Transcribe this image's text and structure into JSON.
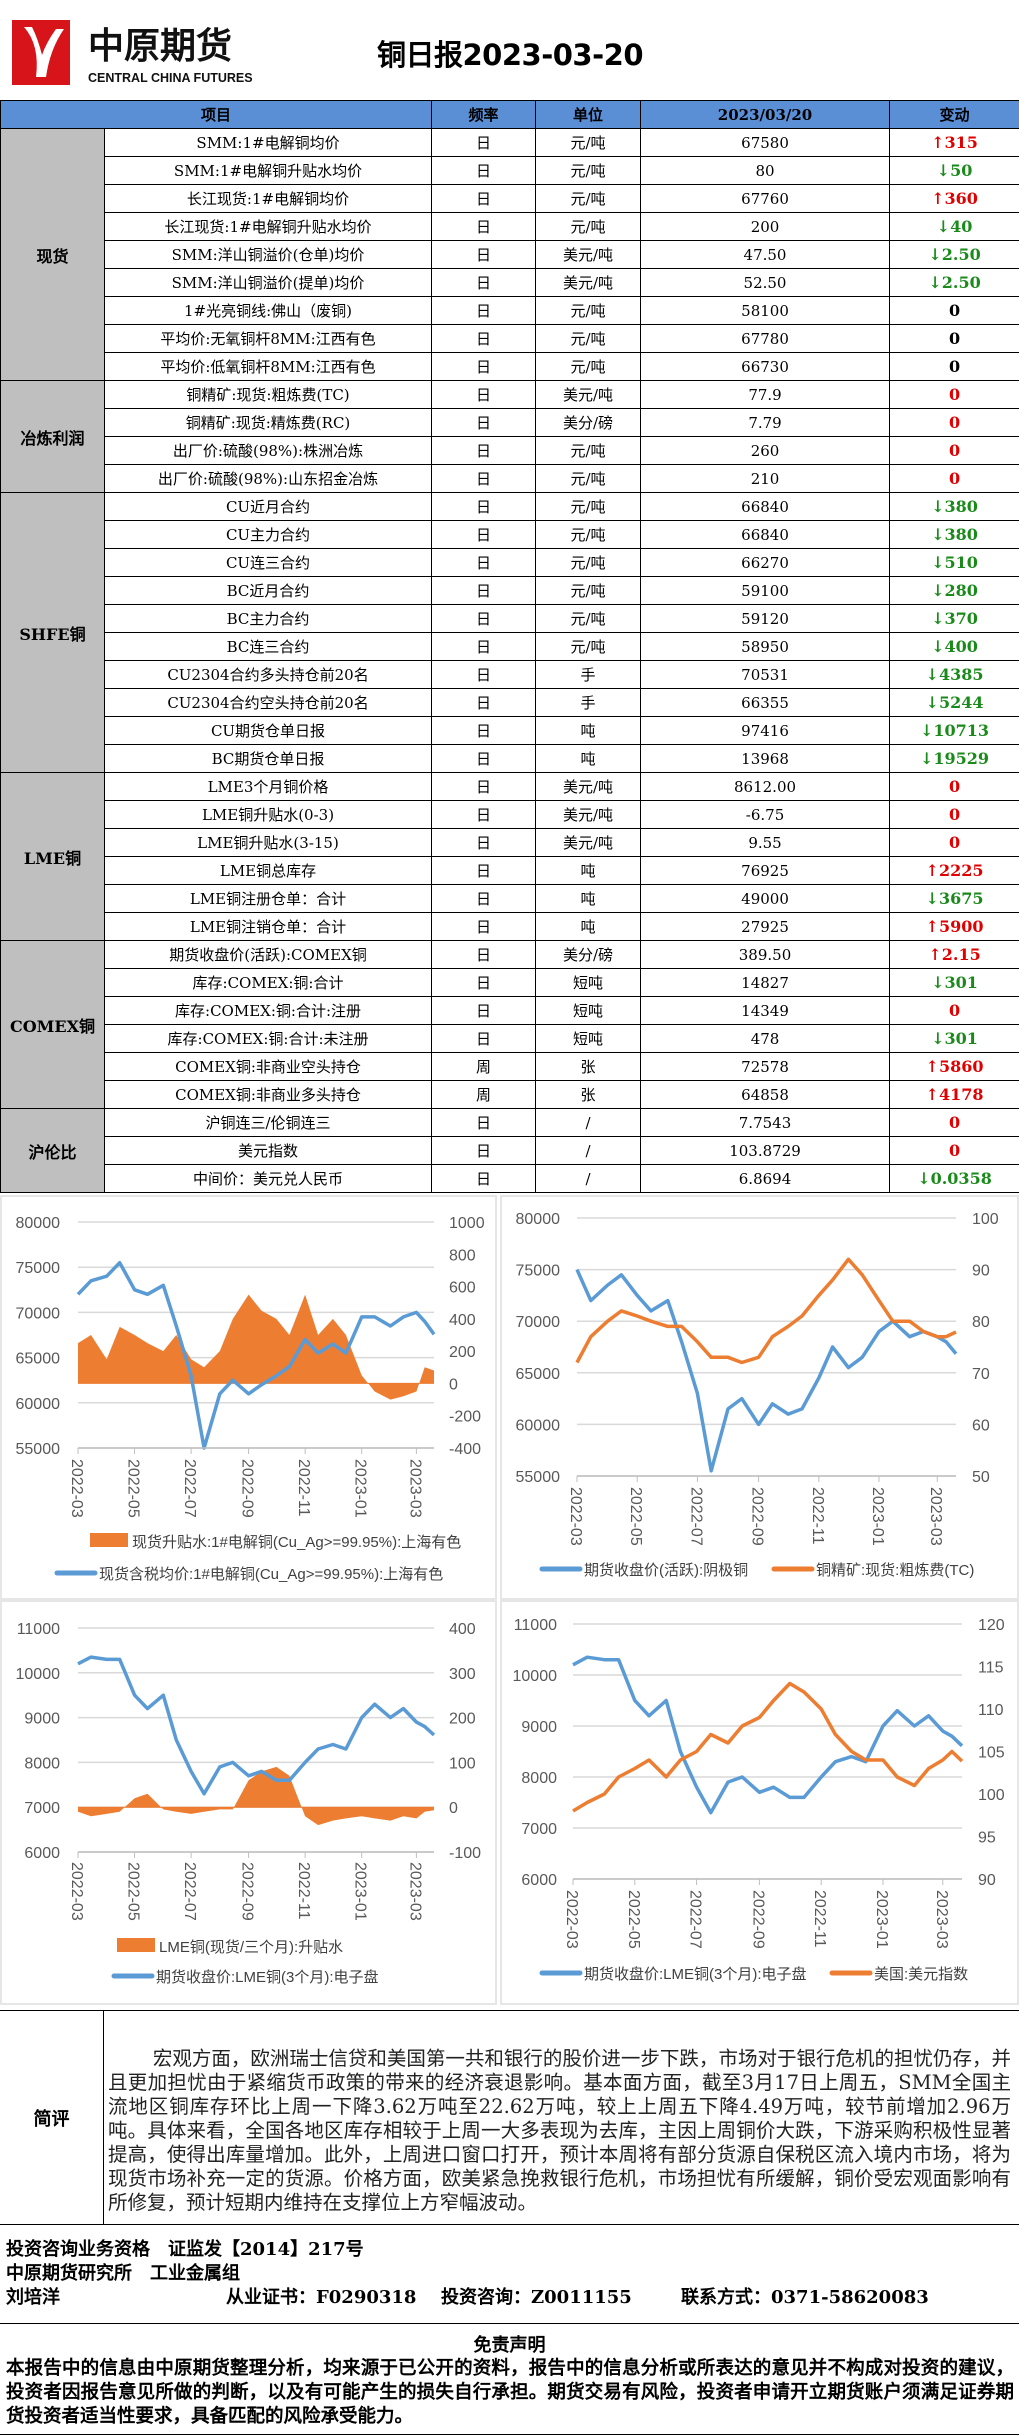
{
  "logo": {
    "cn": "中原期货",
    "en": "CENTRAL CHINA FUTURES",
    "brand_color": "#d7141a"
  },
  "title": "铜日报2023-03-20",
  "table": {
    "headers": [
      "项目",
      "频率",
      "单位",
      "2023/03/20",
      "变动"
    ],
    "header_bg": "#5a8fd6",
    "up_color": "#e00000",
    "down_color": "#1a8a1a",
    "sections": [
      {
        "name": "现货",
        "rows": [
          {
            "item": "SMM:1#电解铜均价",
            "freq": "日",
            "unit": "元/吨",
            "value": "67580",
            "change": "↑315",
            "dir": "up"
          },
          {
            "item": "SMM:1#电解铜升贴水均价",
            "freq": "日",
            "unit": "元/吨",
            "value": "80",
            "change": "↓50",
            "dir": "down"
          },
          {
            "item": "长江现货:1#电解铜均价",
            "freq": "日",
            "unit": "元/吨",
            "value": "67760",
            "change": "↑360",
            "dir": "up"
          },
          {
            "item": "长江现货:1#电解铜升贴水均价",
            "freq": "日",
            "unit": "元/吨",
            "value": "200",
            "change": "↓40",
            "dir": "down"
          },
          {
            "item": "SMM:洋山铜溢价(仓单)均价",
            "freq": "日",
            "unit": "美元/吨",
            "value": "47.50",
            "change": "↓2.50",
            "dir": "down"
          },
          {
            "item": "SMM:洋山铜溢价(提单)均价",
            "freq": "日",
            "unit": "美元/吨",
            "value": "52.50",
            "change": "↓2.50",
            "dir": "down"
          },
          {
            "item": "1#光亮铜线:佛山（废铜)",
            "freq": "日",
            "unit": "元/吨",
            "value": "58100",
            "change": "0",
            "dir": "flat-black"
          },
          {
            "item": "平均价:无氧铜杆8MM:江西有色",
            "freq": "日",
            "unit": "元/吨",
            "value": "67780",
            "change": "0",
            "dir": "flat-black"
          },
          {
            "item": "平均价:低氧铜杆8MM:江西有色",
            "freq": "日",
            "unit": "元/吨",
            "value": "66730",
            "change": "0",
            "dir": "flat-black"
          }
        ]
      },
      {
        "name": "冶炼利润",
        "rows": [
          {
            "item": "铜精矿:现货:粗炼费(TC)",
            "freq": "日",
            "unit": "美元/吨",
            "value": "77.9",
            "change": "0",
            "dir": "flat"
          },
          {
            "item": "铜精矿:现货:精炼费(RC)",
            "freq": "日",
            "unit": "美分/磅",
            "value": "7.79",
            "change": "0",
            "dir": "flat"
          },
          {
            "item": "出厂价:硫酸(98%):株洲冶炼",
            "freq": "日",
            "unit": "元/吨",
            "value": "260",
            "change": "0",
            "dir": "flat"
          },
          {
            "item": "出厂价:硫酸(98%):山东招金冶炼",
            "freq": "日",
            "unit": "元/吨",
            "value": "210",
            "change": "0",
            "dir": "flat"
          }
        ]
      },
      {
        "name": "SHFE铜",
        "rows": [
          {
            "item": "CU近月合约",
            "freq": "日",
            "unit": "元/吨",
            "value": "66840",
            "change": "↓380",
            "dir": "down"
          },
          {
            "item": "CU主力合约",
            "freq": "日",
            "unit": "元/吨",
            "value": "66840",
            "change": "↓380",
            "dir": "down"
          },
          {
            "item": "CU连三合约",
            "freq": "日",
            "unit": "元/吨",
            "value": "66270",
            "change": "↓510",
            "dir": "down"
          },
          {
            "item": "BC近月合约",
            "freq": "日",
            "unit": "元/吨",
            "value": "59100",
            "change": "↓280",
            "dir": "down"
          },
          {
            "item": "BC主力合约",
            "freq": "日",
            "unit": "元/吨",
            "value": "59120",
            "change": "↓370",
            "dir": "down"
          },
          {
            "item": "BC连三合约",
            "freq": "日",
            "unit": "元/吨",
            "value": "58950",
            "change": "↓400",
            "dir": "down"
          },
          {
            "item": "CU2304合约多头持仓前20名",
            "freq": "日",
            "unit": "手",
            "value": "70531",
            "change": "↓4385",
            "dir": "down"
          },
          {
            "item": "CU2304合约空头持仓前20名",
            "freq": "日",
            "unit": "手",
            "value": "66355",
            "change": "↓5244",
            "dir": "down"
          },
          {
            "item": "CU期货仓单日报",
            "freq": "日",
            "unit": "吨",
            "value": "97416",
            "change": "↓10713",
            "dir": "down"
          },
          {
            "item": "BC期货仓单日报",
            "freq": "日",
            "unit": "吨",
            "value": "13968",
            "change": "↓19529",
            "dir": "down"
          }
        ]
      },
      {
        "name": "LME铜",
        "rows": [
          {
            "item": "LME3个月铜价格",
            "freq": "日",
            "unit": "美元/吨",
            "value": "8612.00",
            "change": "0",
            "dir": "flat"
          },
          {
            "item": "LME铜升贴水(0-3)",
            "freq": "日",
            "unit": "美元/吨",
            "value": "-6.75",
            "change": "0",
            "dir": "flat"
          },
          {
            "item": "LME铜升贴水(3-15)",
            "freq": "日",
            "unit": "美元/吨",
            "value": "9.55",
            "change": "0",
            "dir": "flat"
          },
          {
            "item": "LME铜总库存",
            "freq": "日",
            "unit": "吨",
            "value": "76925",
            "change": "↑2225",
            "dir": "up"
          },
          {
            "item": "LME铜注册仓单：合计",
            "freq": "日",
            "unit": "吨",
            "value": "49000",
            "change": "↓3675",
            "dir": "down"
          },
          {
            "item": "LME铜注销仓单：合计",
            "freq": "日",
            "unit": "吨",
            "value": "27925",
            "change": "↑5900",
            "dir": "up"
          }
        ]
      },
      {
        "name": "COMEX铜",
        "rows": [
          {
            "item": "期货收盘价(活跃):COMEX铜",
            "freq": "日",
            "unit": "美分/磅",
            "value": "389.50",
            "change": "↑2.15",
            "dir": "up"
          },
          {
            "item": "库存:COMEX:铜:合计",
            "freq": "日",
            "unit": "短吨",
            "value": "14827",
            "change": "↓301",
            "dir": "down"
          },
          {
            "item": "库存:COMEX:铜:合计:注册",
            "freq": "日",
            "unit": "短吨",
            "value": "14349",
            "change": "0",
            "dir": "flat"
          },
          {
            "item": "库存:COMEX:铜:合计:未注册",
            "freq": "日",
            "unit": "短吨",
            "value": "478",
            "change": "↓301",
            "dir": "down"
          },
          {
            "item": "COMEX铜:非商业空头持仓",
            "freq": "周",
            "unit": "张",
            "value": "72578",
            "change": "↑5860",
            "dir": "up"
          },
          {
            "item": "COMEX铜:非商业多头持仓",
            "freq": "周",
            "unit": "张",
            "value": "64858",
            "change": "↑4178",
            "dir": "up"
          }
        ]
      },
      {
        "name": "沪伦比",
        "rows": [
          {
            "item": "沪铜连三/伦铜连三",
            "freq": "日",
            "unit": "/",
            "value": "7.7543",
            "change": "0",
            "dir": "flat"
          },
          {
            "item": "美元指数",
            "freq": "日",
            "unit": "/",
            "value": "103.8729",
            "change": "0",
            "dir": "flat"
          },
          {
            "item": "中间价：美元兑人民币",
            "freq": "日",
            "unit": "/",
            "value": "6.8694",
            "change": "↓0.0358",
            "dir": "down"
          }
        ]
      }
    ]
  },
  "chart_data": [
    {
      "type": "line+area",
      "x_ticks": [
        "2022-03",
        "2022-05",
        "2022-07",
        "2022-09",
        "2022-11",
        "2023-01",
        "2023-03"
      ],
      "y_left": {
        "range": [
          55000,
          80000
        ],
        "ticks": [
          "55000",
          "60000",
          "65000",
          "70000",
          "75000",
          "80000"
        ]
      },
      "y_right": {
        "range": [
          -400,
          1000
        ],
        "ticks": [
          "-400",
          "-200",
          "0",
          "200",
          "400",
          "600",
          "800",
          "1000"
        ]
      },
      "grid": true,
      "legend": "bottom",
      "x": [
        "2022-03-01",
        "2022-03-15",
        "2022-04-01",
        "2022-04-15",
        "2022-05-01",
        "2022-05-15",
        "2022-06-01",
        "2022-06-15",
        "2022-07-01",
        "2022-07-15",
        "2022-08-01",
        "2022-08-15",
        "2022-09-01",
        "2022-09-15",
        "2022-10-01",
        "2022-10-15",
        "2022-11-01",
        "2022-11-15",
        "2022-12-01",
        "2022-12-15",
        "2023-01-01",
        "2023-01-15",
        "2023-02-01",
        "2023-02-15",
        "2023-03-01",
        "2023-03-10",
        "2023-03-20"
      ],
      "series": [
        {
          "name": "现货升贴水:1#电解铜(Cu_Ag>=99.95%):上海有色",
          "axis": "right",
          "kind": "area",
          "color": "#ed7d31",
          "values": [
            250,
            300,
            150,
            350,
            300,
            250,
            200,
            300,
            150,
            100,
            200,
            400,
            550,
            450,
            400,
            300,
            550,
            300,
            400,
            300,
            50,
            -50,
            -100,
            -80,
            -50,
            100,
            80
          ]
        },
        {
          "name": "现货含税均价:1#电解铜(Cu_Ag>=99.95%):上海有色",
          "axis": "left",
          "kind": "line",
          "color": "#5b9bd5",
          "values": [
            72000,
            73500,
            74000,
            75500,
            72500,
            72000,
            73000,
            68500,
            63000,
            55000,
            61000,
            62500,
            61000,
            62000,
            63000,
            64000,
            67000,
            65500,
            66500,
            65500,
            69500,
            69500,
            68500,
            69500,
            70000,
            69000,
            67580
          ]
        }
      ]
    },
    {
      "type": "line",
      "x_ticks": [
        "2022-03",
        "2022-05",
        "2022-07",
        "2022-09",
        "2022-11",
        "2023-01",
        "2023-03"
      ],
      "y_left": {
        "range": [
          55000,
          80000
        ],
        "ticks": [
          "55000",
          "60000",
          "65000",
          "70000",
          "75000",
          "80000"
        ]
      },
      "y_right": {
        "range": [
          50,
          100
        ],
        "ticks": [
          "50",
          "60",
          "70",
          "80",
          "90",
          "100"
        ]
      },
      "grid": true,
      "legend": "bottom",
      "x": [
        "2022-03-01",
        "2022-03-15",
        "2022-04-01",
        "2022-04-15",
        "2022-05-01",
        "2022-05-15",
        "2022-06-01",
        "2022-06-15",
        "2022-07-01",
        "2022-07-15",
        "2022-08-01",
        "2022-08-15",
        "2022-09-01",
        "2022-09-15",
        "2022-10-01",
        "2022-10-15",
        "2022-11-01",
        "2022-11-15",
        "2022-12-01",
        "2022-12-15",
        "2023-01-01",
        "2023-01-15",
        "2023-02-01",
        "2023-02-15",
        "2023-03-01",
        "2023-03-10",
        "2023-03-20"
      ],
      "series": [
        {
          "name": "期货收盘价(活跃):阴极铜",
          "axis": "left",
          "kind": "line",
          "color": "#5b9bd5",
          "values": [
            75000,
            72000,
            73500,
            74500,
            72500,
            71000,
            72000,
            68000,
            63000,
            55500,
            61500,
            62500,
            60000,
            62000,
            61000,
            61500,
            64500,
            67500,
            65500,
            66500,
            69000,
            70000,
            68500,
            69000,
            68500,
            68000,
            66840
          ]
        },
        {
          "name": "铜精矿:现货:粗炼费(TC)",
          "axis": "right",
          "kind": "line",
          "color": "#ed7d31",
          "values": [
            72,
            77,
            80,
            82,
            81,
            80,
            79,
            79,
            76,
            73,
            73,
            72,
            73,
            77,
            79,
            81,
            85,
            88,
            92,
            89,
            84,
            80,
            80,
            78,
            77,
            77,
            77.9
          ]
        }
      ]
    },
    {
      "type": "line+area",
      "x_ticks": [
        "2022-03",
        "2022-05",
        "2022-07",
        "2022-09",
        "2022-11",
        "2023-01",
        "2023-03"
      ],
      "y_left": {
        "range": [
          6000,
          11000
        ],
        "ticks": [
          "6000",
          "7000",
          "8000",
          "9000",
          "10000",
          "11000"
        ]
      },
      "y_right": {
        "range": [
          -100,
          400
        ],
        "ticks": [
          "-100",
          "0",
          "100",
          "200",
          "300",
          "400"
        ]
      },
      "grid": true,
      "legend": "bottom",
      "x": [
        "2022-03-01",
        "2022-03-15",
        "2022-04-01",
        "2022-04-15",
        "2022-05-01",
        "2022-05-15",
        "2022-06-01",
        "2022-06-15",
        "2022-07-01",
        "2022-07-15",
        "2022-08-01",
        "2022-08-15",
        "2022-09-01",
        "2022-09-15",
        "2022-10-01",
        "2022-10-15",
        "2022-11-01",
        "2022-11-15",
        "2022-12-01",
        "2022-12-15",
        "2023-01-01",
        "2023-01-15",
        "2023-02-01",
        "2023-02-15",
        "2023-03-01",
        "2023-03-10",
        "2023-03-20"
      ],
      "series": [
        {
          "name": "LME铜(现货/三个月):升贴水",
          "axis": "right",
          "kind": "area",
          "color": "#ed7d31",
          "values": [
            -10,
            -20,
            -15,
            -10,
            20,
            30,
            -5,
            -10,
            -15,
            -10,
            -5,
            -5,
            60,
            80,
            90,
            70,
            -20,
            -40,
            -30,
            -25,
            -20,
            -25,
            -30,
            -20,
            -25,
            -10,
            -6.75
          ]
        },
        {
          "name": "期货收盘价:LME铜(3个月):电子盘",
          "axis": "left",
          "kind": "line",
          "color": "#5b9bd5",
          "values": [
            10200,
            10350,
            10300,
            10300,
            9500,
            9200,
            9500,
            8500,
            7800,
            7300,
            7900,
            8000,
            7700,
            7800,
            7600,
            7600,
            8000,
            8300,
            8400,
            8300,
            9000,
            9300,
            9000,
            9200,
            8900,
            8800,
            8612
          ]
        }
      ]
    },
    {
      "type": "line",
      "x_ticks": [
        "2022-03",
        "2022-05",
        "2022-07",
        "2022-09",
        "2022-11",
        "2023-01",
        "2023-03"
      ],
      "y_left": {
        "range": [
          6000,
          11000
        ],
        "ticks": [
          "6000",
          "7000",
          "8000",
          "9000",
          "10000",
          "11000"
        ]
      },
      "y_right": {
        "range": [
          90,
          120
        ],
        "ticks": [
          "90",
          "95",
          "100",
          "105",
          "110",
          "115",
          "120"
        ]
      },
      "grid": true,
      "legend": "bottom",
      "x": [
        "2022-03-01",
        "2022-03-15",
        "2022-04-01",
        "2022-04-15",
        "2022-05-01",
        "2022-05-15",
        "2022-06-01",
        "2022-06-15",
        "2022-07-01",
        "2022-07-15",
        "2022-08-01",
        "2022-08-15",
        "2022-09-01",
        "2022-09-15",
        "2022-10-01",
        "2022-10-15",
        "2022-11-01",
        "2022-11-15",
        "2022-12-01",
        "2022-12-15",
        "2023-01-01",
        "2023-01-15",
        "2023-02-01",
        "2023-02-15",
        "2023-03-01",
        "2023-03-10",
        "2023-03-20"
      ],
      "series": [
        {
          "name": "期货收盘价:LME铜(3个月):电子盘",
          "axis": "left",
          "kind": "line",
          "color": "#5b9bd5",
          "values": [
            10200,
            10350,
            10300,
            10300,
            9500,
            9200,
            9500,
            8500,
            7800,
            7300,
            7900,
            8000,
            7700,
            7800,
            7600,
            7600,
            8000,
            8300,
            8400,
            8300,
            9000,
            9300,
            9000,
            9200,
            8900,
            8800,
            8612
          ]
        },
        {
          "name": "美国:美元指数",
          "axis": "right",
          "kind": "line",
          "color": "#ed7d31",
          "values": [
            98,
            99,
            100,
            102,
            103,
            104,
            102,
            104,
            105,
            107,
            106,
            108,
            109,
            111,
            113,
            112,
            110,
            107,
            105,
            104,
            104,
            102,
            101,
            103,
            104,
            105,
            103.87
          ]
        }
      ]
    }
  ],
  "review": {
    "label": "简评",
    "text": "宏观方面，欧洲瑞士信贷和美国第一共和银行的股价进一步下跌，市场对于银行危机的担忧仍存，并且更加担忧由于紧缩货币政策的带来的经济衰退影响。基本面方面，截至3月17日上周五，SMM全国主流地区铜库存环比上周一下降3.62万吨至22.62万吨，较上上周五下降4.49万吨，较节前增加2.96万吨。具体来看，全国各地区库存相较于上周一大多表现为去库，主因上周铜价大跌，下游采购积极性显著提高，使得出库量增加。此外，上周进口窗口打开，预计本周将有部分货源自保税区流入境内市场，将为现货市场补充一定的货源。价格方面，欧美紧急挽救银行危机，市场担忧有所缓解，铜价受宏观面影响有所修复，预计短期内维持在支撑位上方窄幅波动。"
  },
  "credits": {
    "qualification": "投资咨询业务资格　证监发【2014】217号",
    "institute": "中原期货研究所　工业金属组",
    "analyst": "刘培洋",
    "license": "从业证书：F0290318",
    "consult": "投资咨询：Z0011155",
    "contact": "联系方式：0371-58620083"
  },
  "disclaimer": {
    "title": "免责声明",
    "text": "本报告中的信息由中原期货整理分析，均来源于已公开的资料，报告中的信息分析或所表达的意见并不构成对投资的建议，投资者因报告意见所做的判断，以及有可能产生的损失自行承担。期货交易有风险，投资者申请开立期货账户须满足证券期货投资者适当性要求，具备匹配的风险承受能力。"
  }
}
